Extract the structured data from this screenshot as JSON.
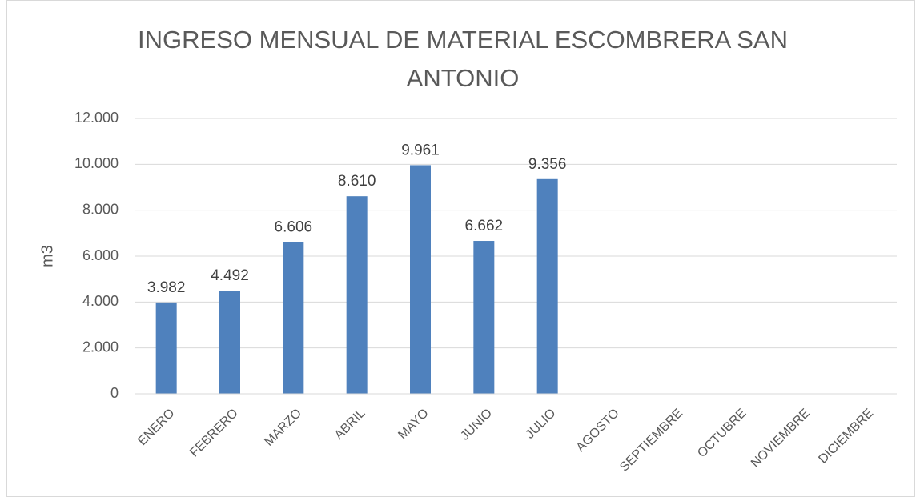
{
  "chart_data": {
    "type": "bar",
    "title": "INGRESO MENSUAL DE MATERIAL  ESCOMBRERA SAN ANTONIO",
    "y_label": "m3",
    "categories": [
      "ENERO",
      "FEBRERO",
      "MARZO",
      "ABRIL",
      "MAYO",
      "JUNIO",
      "JULIO",
      "AGOSTO",
      "SEPTIEMBRE",
      "OCTUBRE",
      "NOVIEMBRE",
      "DICIEMBRE"
    ],
    "values": [
      3982,
      4492,
      6606,
      8610,
      9961,
      6662,
      9356,
      null,
      null,
      null,
      null,
      null
    ],
    "value_labels": [
      "3.982",
      "4.492",
      "6.606",
      "8.610",
      "9.961",
      "6.662",
      "9.356",
      null,
      null,
      null,
      null,
      null
    ],
    "color": "#4f81bd",
    "ylim": [
      0,
      12000
    ],
    "yticks": [
      {
        "value": 0,
        "label": "0"
      },
      {
        "value": 2000,
        "label": "2.000"
      },
      {
        "value": 4000,
        "label": "4.000"
      },
      {
        "value": 6000,
        "label": "6.000"
      },
      {
        "value": 8000,
        "label": "8.000"
      },
      {
        "value": 10000,
        "label": "10.000"
      },
      {
        "value": 12000,
        "label": "12.000"
      }
    ],
    "grid": true
  }
}
